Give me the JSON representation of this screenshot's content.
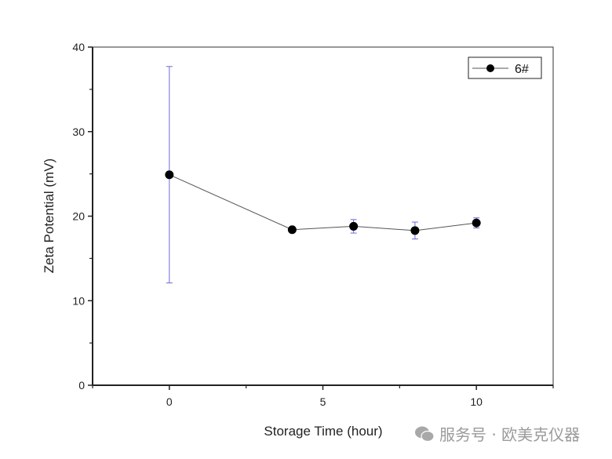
{
  "chart_data": {
    "type": "line",
    "title": "",
    "xlabel": "Storage Time (hour)",
    "ylabel": "Zeta Potential (mV)",
    "xlim": [
      -2.5,
      12.5
    ],
    "ylim": [
      0,
      40
    ],
    "xticks": [
      0,
      5,
      10
    ],
    "yticks": [
      0,
      10,
      20,
      30,
      40
    ],
    "grid": false,
    "legend_position": "top-right",
    "series": [
      {
        "name": "6#",
        "x": [
          0,
          4,
          6,
          8,
          10
        ],
        "y": [
          24.9,
          18.4,
          18.8,
          18.3,
          19.2
        ],
        "yerr": [
          12.8,
          0.3,
          0.8,
          1.0,
          0.6
        ],
        "marker_color": "#000000",
        "line_color": "#555555",
        "errorbar_color": "#6a6ae0"
      }
    ]
  },
  "watermark": {
    "icon": "wechat-icon",
    "text": "服务号 · 欧美克仪器"
  }
}
